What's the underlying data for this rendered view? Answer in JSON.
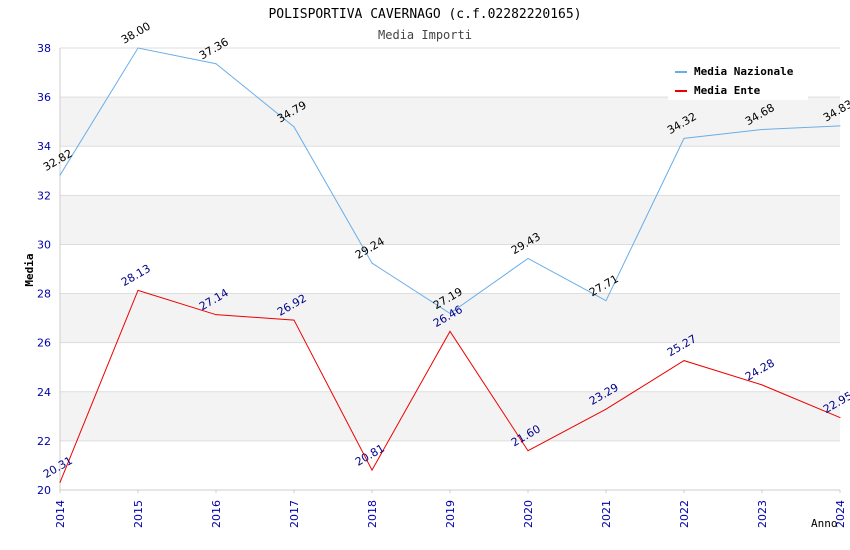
{
  "chart_data": {
    "type": "line",
    "title": "POLISPORTIVA CAVERNAGO (c.f.02282220165)",
    "subtitle": "Media Importi",
    "xlabel": "Anno",
    "ylabel": "Media",
    "ylim": [
      20,
      38
    ],
    "yticks": [
      20,
      22,
      24,
      26,
      28,
      30,
      32,
      34,
      36,
      38
    ],
    "categories": [
      "2014",
      "2015",
      "2016",
      "2017",
      "2018",
      "2019",
      "2020",
      "2021",
      "2022",
      "2023",
      "2024"
    ],
    "series": [
      {
        "name": "Media Nazionale",
        "color": "#6aaee8",
        "label_color": "#000000",
        "values": [
          32.82,
          38.0,
          37.36,
          34.79,
          29.24,
          27.19,
          29.43,
          27.71,
          34.32,
          34.68,
          34.83
        ],
        "labels": [
          "32.82",
          "38.00",
          "37.36",
          "34.79",
          "29.24",
          "27.19",
          "29.43",
          "27.71",
          "34.32",
          "34.68",
          "34.83"
        ]
      },
      {
        "name": "Media Ente",
        "color": "#ee0000",
        "label_color": "#000088",
        "values": [
          20.31,
          28.13,
          27.14,
          26.92,
          20.81,
          26.46,
          21.6,
          23.29,
          25.27,
          24.28,
          22.95
        ],
        "labels": [
          "20.31",
          "28.13",
          "27.14",
          "26.92",
          "20.81",
          "26.46",
          "21.60",
          "23.29",
          "25.27",
          "24.28",
          "22.95"
        ]
      }
    ],
    "grid": true,
    "legend_position": "top-right"
  }
}
